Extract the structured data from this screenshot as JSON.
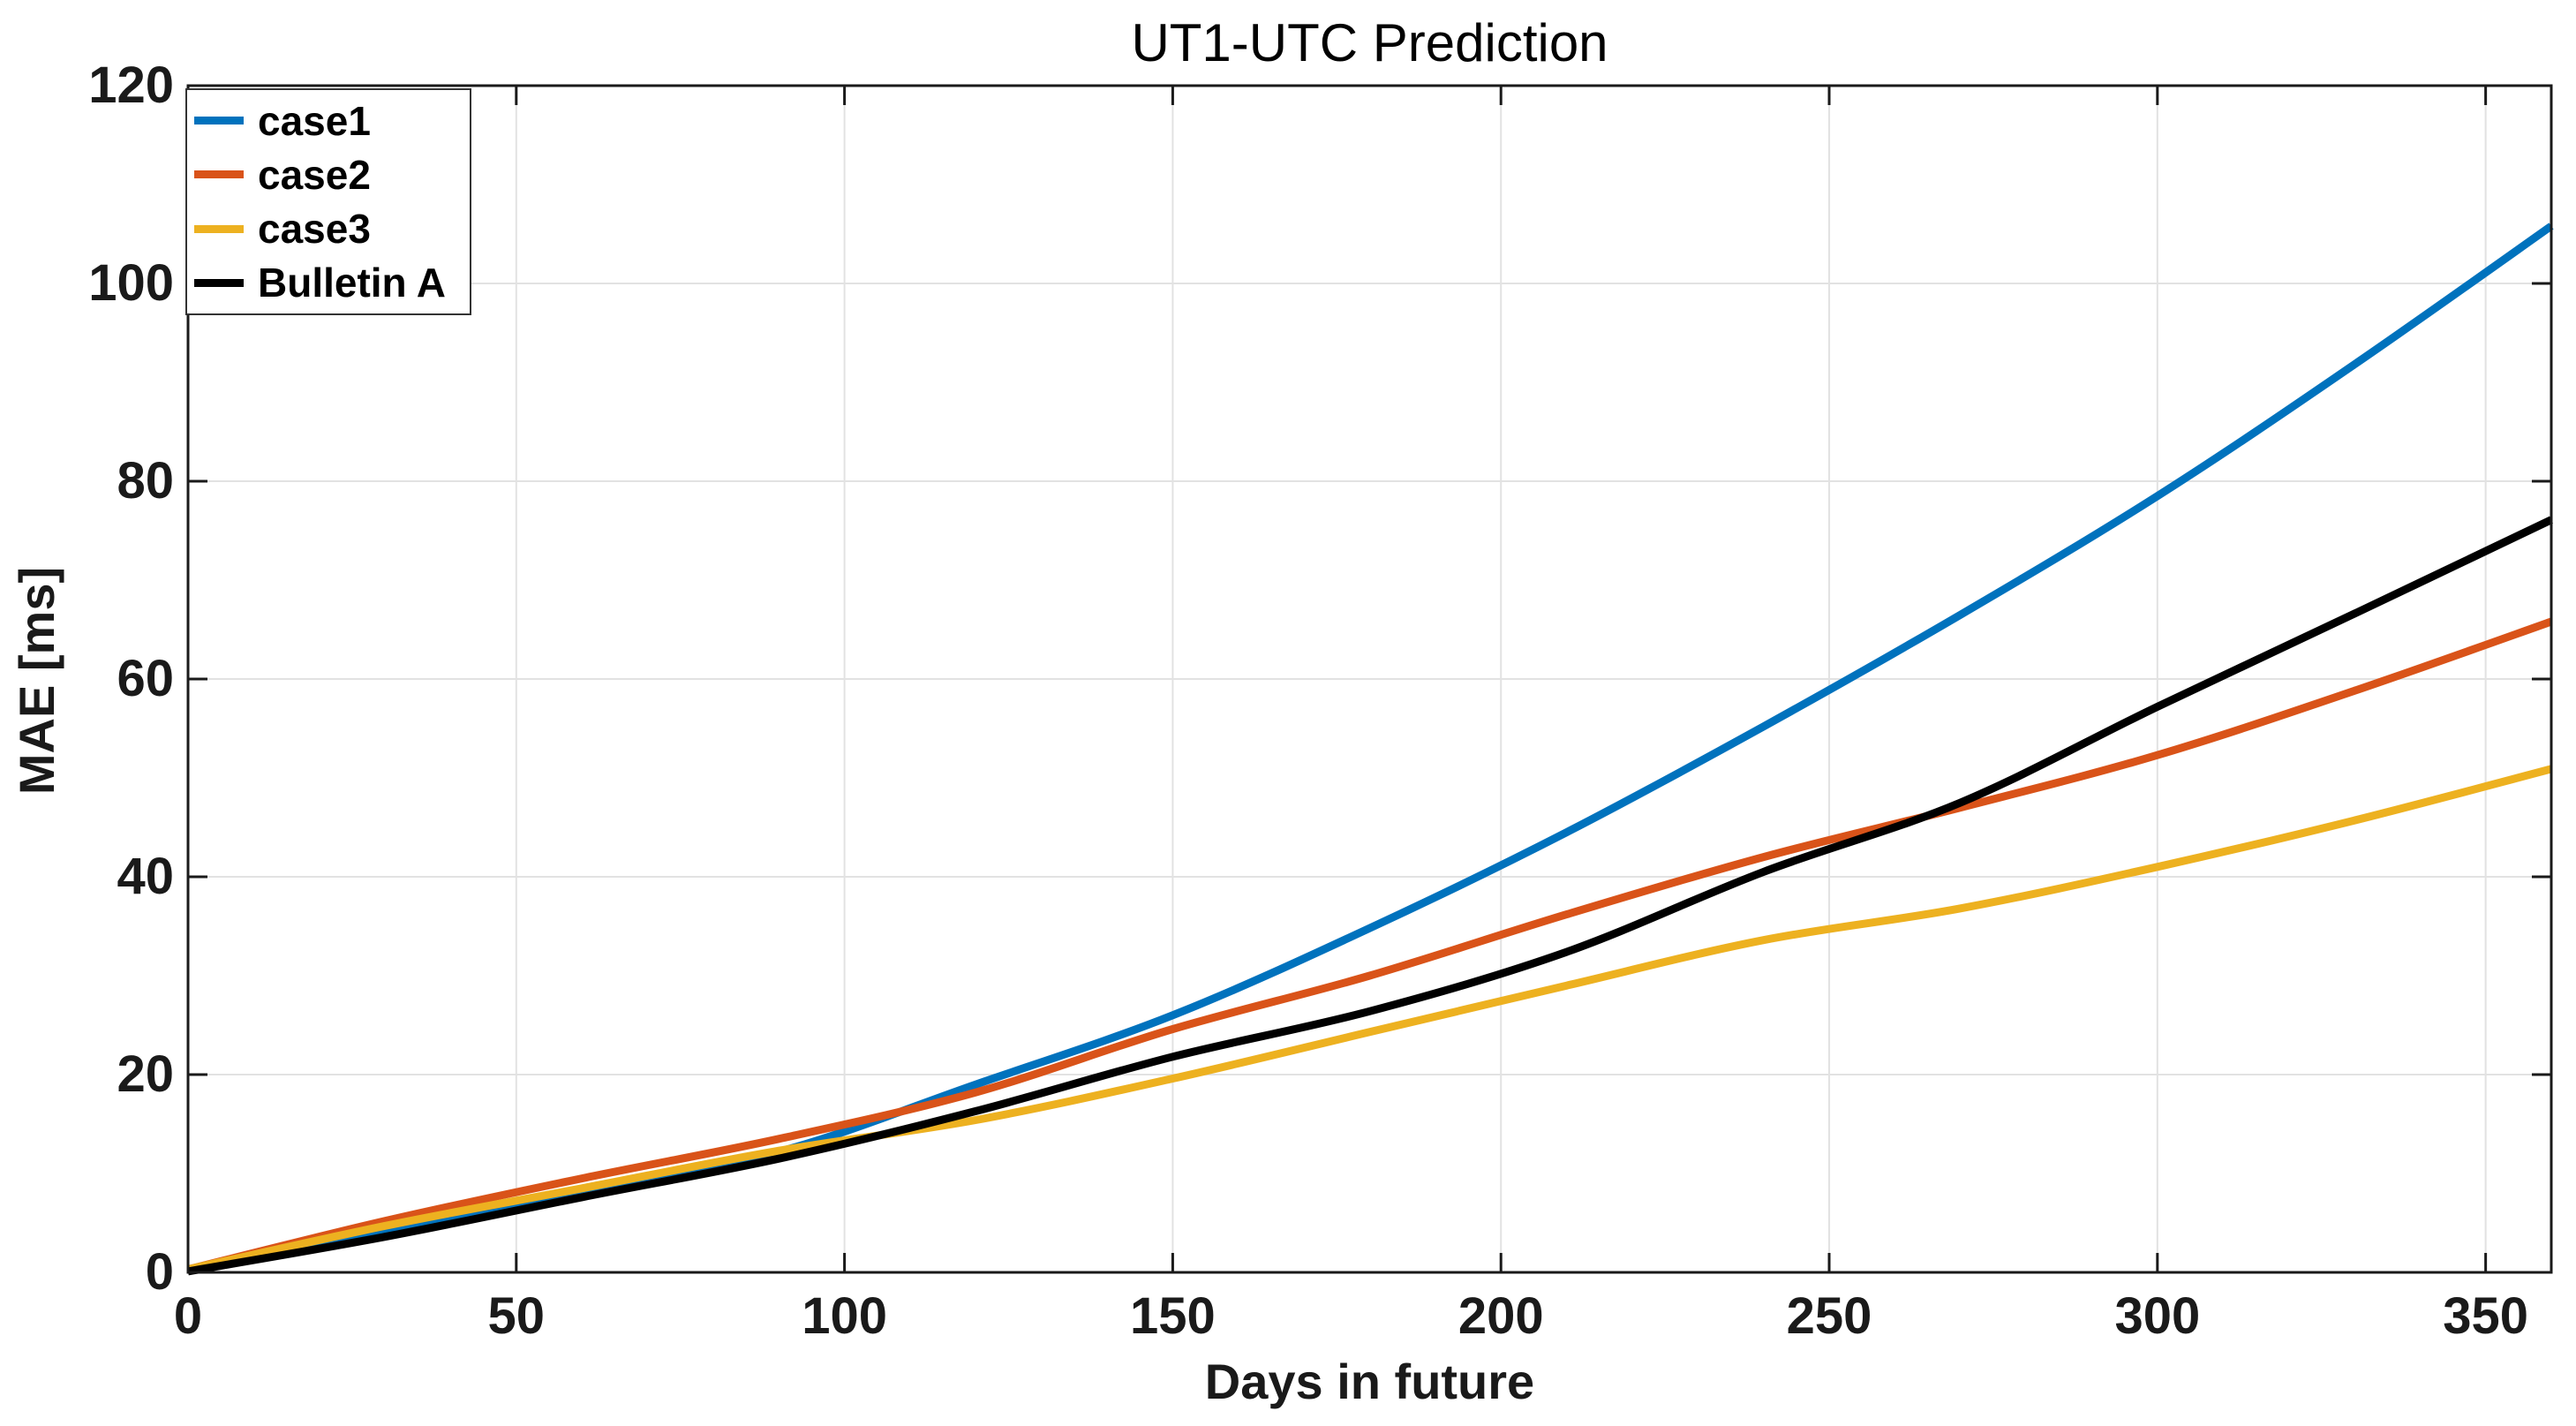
{
  "chart_data": {
    "type": "line",
    "title": "UT1-UTC Prediction",
    "xlabel": "Days in future",
    "ylabel": "MAE [ms]",
    "xlim": [
      0,
      360
    ],
    "ylim": [
      0,
      120
    ],
    "xticks": [
      0,
      50,
      100,
      150,
      200,
      250,
      300,
      350
    ],
    "yticks": [
      0,
      20,
      40,
      60,
      80,
      100,
      120
    ],
    "grid": true,
    "legend_position": "top-left",
    "x": [
      0,
      30,
      60,
      90,
      120,
      150,
      180,
      210,
      240,
      270,
      300,
      330,
      360
    ],
    "series": [
      {
        "name": "case1",
        "color": "#0072BD",
        "values": [
          0.2,
          4.2,
          8.4,
          12.2,
          19.0,
          26.0,
          34.8,
          44.5,
          55.2,
          66.5,
          78.5,
          91.8,
          105.8
        ]
      },
      {
        "name": "case2",
        "color": "#D95319",
        "values": [
          0.3,
          5.2,
          9.5,
          13.5,
          18.2,
          24.6,
          30.0,
          36.2,
          42.0,
          47.0,
          52.3,
          58.8,
          65.8
        ]
      },
      {
        "name": "case3",
        "color": "#EDB120",
        "values": [
          0.3,
          4.7,
          8.5,
          12.3,
          15.4,
          19.6,
          24.3,
          29.0,
          33.6,
          36.8,
          41.0,
          45.7,
          50.9
        ]
      },
      {
        "name": "Bulletin A",
        "color": "#000000",
        "values": [
          0.1,
          3.6,
          7.6,
          11.5,
          16.3,
          21.8,
          26.4,
          32.4,
          40.5,
          47.5,
          57.2,
          66.6,
          76.1
        ]
      }
    ],
    "axis_color": "#1a1a1a",
    "grid_color": "#e2e2e2"
  }
}
